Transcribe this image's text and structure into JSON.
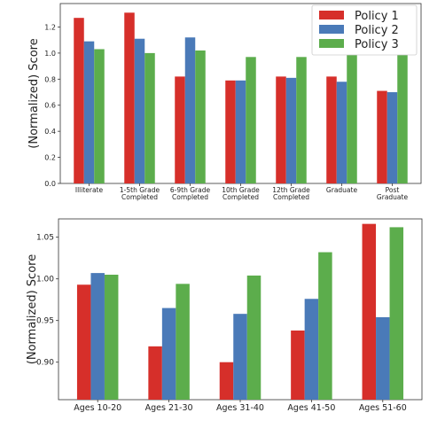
{
  "chart_data": [
    {
      "type": "bar",
      "categories": [
        [
          "Illiterate"
        ],
        [
          "1-5th Grade",
          "Completed"
        ],
        [
          "6-9th Grade",
          "Completed"
        ],
        [
          "10th Grade",
          "Completed"
        ],
        [
          "12th Grade",
          "Completed"
        ],
        [
          "Graduate"
        ],
        [
          "Post",
          "Graduate"
        ]
      ],
      "series": [
        {
          "name": "Policy 1",
          "color": "#d62f2a",
          "values": [
            1.27,
            1.31,
            0.82,
            0.79,
            0.82,
            0.82,
            0.71
          ]
        },
        {
          "name": "Policy 2",
          "color": "#4a7ab8",
          "values": [
            1.09,
            1.11,
            1.12,
            0.79,
            0.81,
            0.78,
            0.7
          ]
        },
        {
          "name": "Policy 3",
          "color": "#5cad4c",
          "values": [
            1.03,
            1.0,
            1.02,
            0.97,
            0.97,
            1.0,
            1.0
          ]
        }
      ],
      "ylabel": "(Normalized) Score",
      "ylim": [
        0,
        1.38
      ],
      "yticks": [
        "0.0",
        "0.2",
        "0.4",
        "0.6",
        "0.8",
        "1.0",
        "1.2"
      ],
      "legend": "top-right"
    },
    {
      "type": "bar",
      "categories": [
        [
          "Ages 10-20"
        ],
        [
          "Ages 21-30"
        ],
        [
          "Ages 31-40"
        ],
        [
          "Ages 41-50"
        ],
        [
          "Ages 51-60"
        ]
      ],
      "series": [
        {
          "name": "Policy 1",
          "color": "#d62f2a",
          "values": [
            0.993,
            0.919,
            0.9,
            0.938,
            1.066
          ]
        },
        {
          "name": "Policy 2",
          "color": "#4a7ab8",
          "values": [
            1.007,
            0.965,
            0.958,
            0.976,
            0.954
          ]
        },
        {
          "name": "Policy 3",
          "color": "#5cad4c",
          "values": [
            1.005,
            0.994,
            1.004,
            1.032,
            1.062
          ]
        }
      ],
      "ylabel": "(Normalized) Score",
      "ylim": [
        0.855,
        1.072
      ],
      "yticks": [
        "0.90",
        "0.95",
        "1.00",
        "1.05"
      ]
    }
  ]
}
